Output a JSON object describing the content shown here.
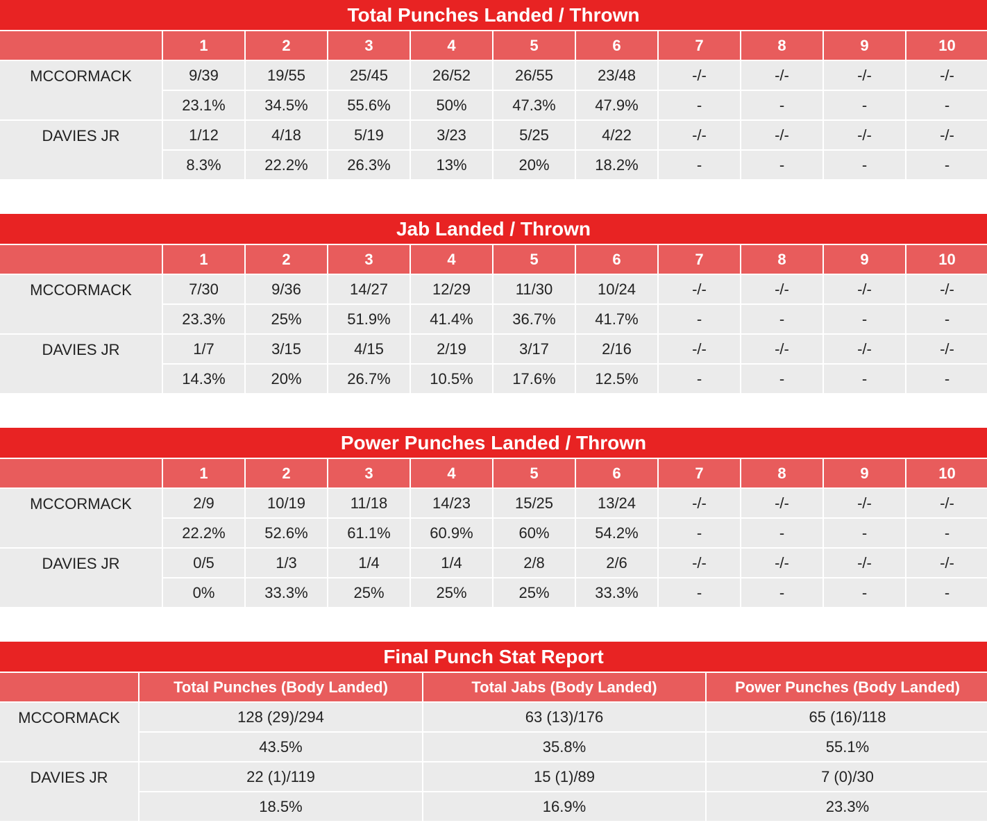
{
  "round_tables": [
    {
      "title": "Total Punches Landed / Thrown",
      "rounds": [
        "1",
        "2",
        "3",
        "4",
        "5",
        "6",
        "7",
        "8",
        "9",
        "10"
      ],
      "fighters": [
        {
          "name": "MCCORMACK",
          "landed_thrown": [
            "9/39",
            "19/55",
            "25/45",
            "26/52",
            "26/55",
            "23/48",
            "-/-",
            "-/-",
            "-/-",
            "-/-"
          ],
          "percent": [
            "23.1%",
            "34.5%",
            "55.6%",
            "50%",
            "47.3%",
            "47.9%",
            "-",
            "-",
            "-",
            "-"
          ]
        },
        {
          "name": "DAVIES JR",
          "landed_thrown": [
            "1/12",
            "4/18",
            "5/19",
            "3/23",
            "5/25",
            "4/22",
            "-/-",
            "-/-",
            "-/-",
            "-/-"
          ],
          "percent": [
            "8.3%",
            "22.2%",
            "26.3%",
            "13%",
            "20%",
            "18.2%",
            "-",
            "-",
            "-",
            "-"
          ]
        }
      ]
    },
    {
      "title": "Jab Landed / Thrown",
      "rounds": [
        "1",
        "2",
        "3",
        "4",
        "5",
        "6",
        "7",
        "8",
        "9",
        "10"
      ],
      "fighters": [
        {
          "name": "MCCORMACK",
          "landed_thrown": [
            "7/30",
            "9/36",
            "14/27",
            "12/29",
            "11/30",
            "10/24",
            "-/-",
            "-/-",
            "-/-",
            "-/-"
          ],
          "percent": [
            "23.3%",
            "25%",
            "51.9%",
            "41.4%",
            "36.7%",
            "41.7%",
            "-",
            "-",
            "-",
            "-"
          ]
        },
        {
          "name": "DAVIES JR",
          "landed_thrown": [
            "1/7",
            "3/15",
            "4/15",
            "2/19",
            "3/17",
            "2/16",
            "-/-",
            "-/-",
            "-/-",
            "-/-"
          ],
          "percent": [
            "14.3%",
            "20%",
            "26.7%",
            "10.5%",
            "17.6%",
            "12.5%",
            "-",
            "-",
            "-",
            "-"
          ]
        }
      ]
    },
    {
      "title": "Power Punches Landed / Thrown",
      "rounds": [
        "1",
        "2",
        "3",
        "4",
        "5",
        "6",
        "7",
        "8",
        "9",
        "10"
      ],
      "fighters": [
        {
          "name": "MCCORMACK",
          "landed_thrown": [
            "2/9",
            "10/19",
            "11/18",
            "14/23",
            "15/25",
            "13/24",
            "-/-",
            "-/-",
            "-/-",
            "-/-"
          ],
          "percent": [
            "22.2%",
            "52.6%",
            "61.1%",
            "60.9%",
            "60%",
            "54.2%",
            "-",
            "-",
            "-",
            "-"
          ]
        },
        {
          "name": "DAVIES JR",
          "landed_thrown": [
            "0/5",
            "1/3",
            "1/4",
            "1/4",
            "2/8",
            "2/6",
            "-/-",
            "-/-",
            "-/-",
            "-/-"
          ],
          "percent": [
            "0%",
            "33.3%",
            "25%",
            "25%",
            "25%",
            "33.3%",
            "-",
            "-",
            "-",
            "-"
          ]
        }
      ]
    }
  ],
  "final_report": {
    "title": "Final Punch Stat Report",
    "columns": [
      "Total Punches (Body Landed)",
      "Total Jabs (Body Landed)",
      "Power Punches (Body Landed)"
    ],
    "fighters": [
      {
        "name": "MCCORMACK",
        "values": [
          "128 (29)/294",
          "63 (13)/176",
          "65 (16)/118"
        ],
        "percent": [
          "43.5%",
          "35.8%",
          "55.1%"
        ]
      },
      {
        "name": "DAVIES JR",
        "values": [
          "22 (1)/119",
          "15 (1)/89",
          "7 (0)/30"
        ],
        "percent": [
          "18.5%",
          "16.9%",
          "23.3%"
        ]
      }
    ]
  },
  "colors": {
    "title_red": "#e82323",
    "header_red": "#e85c5c",
    "cell_gray": "#ebebeb"
  }
}
